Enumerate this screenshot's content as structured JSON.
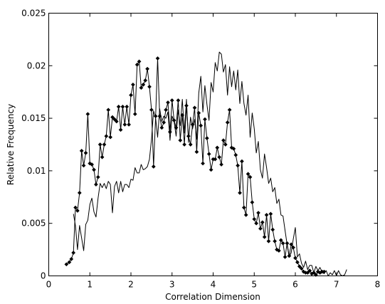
{
  "chart_data": {
    "type": "line",
    "xlabel": "Correlation Dimension",
    "ylabel": "Relative Frequency",
    "xlim": [
      0,
      8
    ],
    "ylim": [
      0,
      0.025
    ],
    "x_ticks": [
      "0",
      "1",
      "2",
      "3",
      "4",
      "5",
      "6",
      "7",
      "8"
    ],
    "y_ticks": [
      "0",
      "0.005",
      "0.01",
      "0.015",
      "0.02",
      "0.025"
    ],
    "grid": false,
    "series": [
      {
        "marker": "diamond",
        "color": "#000000",
        "x": [
          0.43,
          0.5,
          0.55,
          0.6,
          0.65,
          0.7,
          0.75,
          0.8,
          0.85,
          0.9,
          0.95,
          1.0,
          1.05,
          1.1,
          1.15,
          1.2,
          1.25,
          1.3,
          1.35,
          1.4,
          1.45,
          1.5,
          1.55,
          1.6,
          1.65,
          1.7,
          1.75,
          1.8,
          1.85,
          1.9,
          1.95,
          2.0,
          2.05,
          2.1,
          2.15,
          2.2,
          2.25,
          2.3,
          2.35,
          2.4,
          2.45,
          2.5,
          2.55,
          2.6,
          2.65,
          2.7,
          2.75,
          2.8,
          2.85,
          2.9,
          2.95,
          3.0,
          3.05,
          3.1,
          3.15,
          3.2,
          3.25,
          3.3,
          3.35,
          3.4,
          3.45,
          3.5,
          3.55,
          3.6,
          3.65,
          3.7,
          3.75,
          3.8,
          3.85,
          3.9,
          3.95,
          4.0,
          4.05,
          4.1,
          4.15,
          4.2,
          4.25,
          4.3,
          4.35,
          4.4,
          4.45,
          4.5,
          4.55,
          4.6,
          4.65,
          4.7,
          4.75,
          4.8,
          4.85,
          4.9,
          4.95,
          5.0,
          5.05,
          5.1,
          5.15,
          5.2,
          5.25,
          5.3,
          5.35,
          5.4,
          5.45,
          5.5,
          5.55,
          5.6,
          5.65,
          5.7,
          5.75,
          5.8,
          5.85,
          5.9,
          5.95,
          6.0,
          6.05,
          6.1,
          6.15,
          6.2,
          6.25,
          6.3,
          6.35,
          6.4,
          6.45,
          6.5,
          6.55,
          6.6,
          6.65,
          6.7
        ],
        "y": [
          0.0011,
          0.0013,
          0.0016,
          0.0022,
          0.0065,
          0.0062,
          0.0079,
          0.0119,
          0.0105,
          0.0117,
          0.0154,
          0.0107,
          0.0106,
          0.0101,
          0.0087,
          0.0094,
          0.0125,
          0.0113,
          0.0125,
          0.0133,
          0.0158,
          0.0132,
          0.0151,
          0.0149,
          0.0147,
          0.0161,
          0.0139,
          0.0161,
          0.0144,
          0.0161,
          0.0144,
          0.0172,
          0.0182,
          0.0154,
          0.0201,
          0.0204,
          0.0179,
          0.0182,
          0.0186,
          0.0197,
          0.018,
          0.0158,
          0.0104,
          0.0152,
          0.0207,
          0.0152,
          0.0141,
          0.0146,
          0.0158,
          0.0165,
          0.0137,
          0.0167,
          0.0148,
          0.0141,
          0.0167,
          0.0129,
          0.0153,
          0.0125,
          0.0162,
          0.0133,
          0.0125,
          0.0144,
          0.016,
          0.0118,
          0.0155,
          0.0143,
          0.0107,
          0.0149,
          0.0131,
          0.0116,
          0.0101,
          0.0111,
          0.0111,
          0.0122,
          0.0113,
          0.0106,
          0.0129,
          0.0125,
          0.0146,
          0.0158,
          0.0122,
          0.0121,
          0.0115,
          0.0105,
          0.0079,
          0.0109,
          0.0065,
          0.0058,
          0.0097,
          0.0094,
          0.007,
          0.0054,
          0.005,
          0.006,
          0.0045,
          0.0051,
          0.0037,
          0.0058,
          0.0033,
          0.0059,
          0.0044,
          0.0033,
          0.0025,
          0.0024,
          0.0034,
          0.0031,
          0.0018,
          0.0031,
          0.0019,
          0.003,
          0.0027,
          0.0017,
          0.0013,
          0.0009,
          0.0007,
          0.0004,
          0.0003,
          0.0003,
          0.0005,
          0.0002,
          0.0003,
          0.0001,
          0.0004,
          0.0003,
          0.0004,
          0.0004
        ]
      },
      {
        "marker": "none",
        "color": "#000000",
        "x": [
          0.6,
          0.65,
          0.7,
          0.75,
          0.8,
          0.85,
          0.9,
          0.95,
          1.0,
          1.05,
          1.1,
          1.15,
          1.2,
          1.25,
          1.3,
          1.35,
          1.4,
          1.45,
          1.5,
          1.55,
          1.6,
          1.65,
          1.7,
          1.75,
          1.8,
          1.85,
          1.9,
          1.95,
          2.0,
          2.05,
          2.1,
          2.15,
          2.2,
          2.25,
          2.3,
          2.35,
          2.4,
          2.45,
          2.5,
          2.55,
          2.6,
          2.65,
          2.7,
          2.75,
          2.8,
          2.85,
          2.9,
          2.95,
          3.0,
          3.05,
          3.1,
          3.15,
          3.2,
          3.25,
          3.3,
          3.35,
          3.4,
          3.45,
          3.5,
          3.55,
          3.6,
          3.65,
          3.7,
          3.75,
          3.8,
          3.85,
          3.9,
          3.95,
          4.0,
          4.05,
          4.1,
          4.15,
          4.2,
          4.25,
          4.3,
          4.35,
          4.4,
          4.45,
          4.5,
          4.55,
          4.6,
          4.65,
          4.7,
          4.75,
          4.8,
          4.85,
          4.9,
          4.95,
          5.0,
          5.05,
          5.1,
          5.15,
          5.2,
          5.25,
          5.3,
          5.35,
          5.4,
          5.45,
          5.5,
          5.55,
          5.6,
          5.65,
          5.7,
          5.75,
          5.8,
          5.85,
          5.9,
          5.95,
          6.0,
          6.05,
          6.1,
          6.15,
          6.2,
          6.25,
          6.3,
          6.35,
          6.4,
          6.45,
          6.5,
          6.55,
          6.6,
          6.65,
          6.7,
          6.75,
          6.8,
          6.85,
          6.9,
          6.95,
          7.0,
          7.05,
          7.1,
          7.15,
          7.2,
          7.25
        ],
        "y": [
          0.0059,
          0.0048,
          0.0025,
          0.0048,
          0.0036,
          0.0024,
          0.0049,
          0.0053,
          0.0068,
          0.0074,
          0.0061,
          0.0056,
          0.0074,
          0.0088,
          0.0084,
          0.0088,
          0.0083,
          0.009,
          0.0087,
          0.006,
          0.0085,
          0.009,
          0.0079,
          0.009,
          0.008,
          0.0087,
          0.0087,
          0.0084,
          0.0092,
          0.0091,
          0.0103,
          0.0098,
          0.0098,
          0.0106,
          0.0101,
          0.0102,
          0.0104,
          0.0111,
          0.013,
          0.0157,
          0.015,
          0.0132,
          0.0159,
          0.0147,
          0.0152,
          0.015,
          0.0156,
          0.0129,
          0.0152,
          0.0147,
          0.0133,
          0.0158,
          0.0143,
          0.0168,
          0.0136,
          0.0168,
          0.0127,
          0.0151,
          0.014,
          0.0149,
          0.013,
          0.0174,
          0.019,
          0.0156,
          0.0181,
          0.0163,
          0.0148,
          0.0184,
          0.0175,
          0.0203,
          0.0195,
          0.0213,
          0.0211,
          0.0194,
          0.0201,
          0.0172,
          0.0199,
          0.018,
          0.0195,
          0.0177,
          0.0196,
          0.0164,
          0.0185,
          0.0164,
          0.0153,
          0.0172,
          0.0132,
          0.0155,
          0.014,
          0.0117,
          0.0128,
          0.0101,
          0.0093,
          0.0116,
          0.0103,
          0.0088,
          0.0093,
          0.008,
          0.0084,
          0.0069,
          0.0073,
          0.0058,
          0.0057,
          0.0043,
          0.003,
          0.0018,
          0.0022,
          0.0035,
          0.0046,
          0.0018,
          0.0021,
          0.0012,
          0.0008,
          0.0014,
          0.0006,
          0.001,
          0.001,
          0.0003,
          0.0009,
          0.0005,
          0.0008,
          0.0004,
          0.0002,
          0.0005,
          0.0,
          0.0003,
          0.0001,
          0.0005,
          0.0,
          0.0005,
          0.0001,
          0.0,
          0.0001,
          0.0006
        ]
      }
    ]
  }
}
